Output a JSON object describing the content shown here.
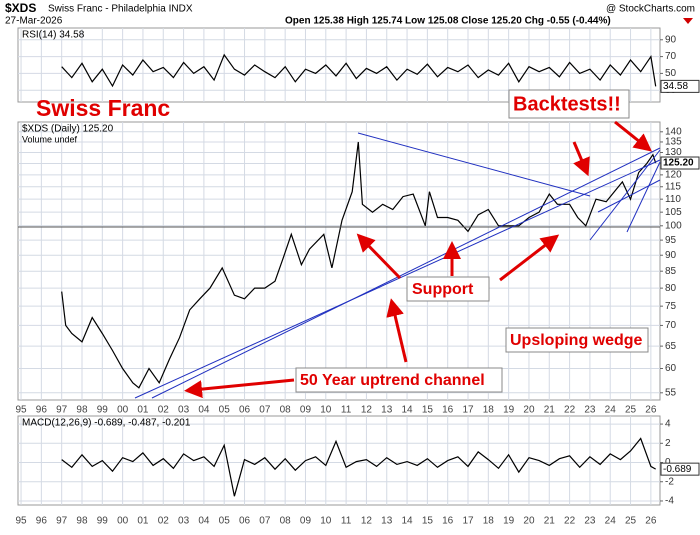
{
  "header": {
    "symbol": "$XDS",
    "name": "Swiss Franc - Philadelphia INDX",
    "date": "27-Mar-2026",
    "source": "@ StockCharts.com",
    "stats": "Open 125.38  High 125.74  Low 125.08  Close 125.20  Chg -0.55 (-0.44%)"
  },
  "chart_data": [
    {
      "type": "line",
      "title": "RSI(14) 34.58",
      "last_label": "34.58",
      "color": "#000000",
      "grid": true,
      "ylim": [
        16,
        104
      ],
      "yticks": [
        30,
        50,
        70,
        90
      ],
      "xlim": [
        1994.85,
        2026.45
      ],
      "x": [
        1997,
        1997.5,
        1998,
        1998.5,
        1999,
        1999.5,
        2000,
        2000.5,
        2001,
        2001.5,
        2002,
        2002.5,
        2003,
        2003.5,
        2004,
        2004.5,
        2005,
        2005.5,
        2006,
        2006.5,
        2007,
        2007.5,
        2008,
        2008.5,
        2009,
        2009.5,
        2010,
        2010.5,
        2011,
        2011.5,
        2012,
        2012.5,
        2013,
        2013.5,
        2014,
        2014.5,
        2015,
        2015.5,
        2016,
        2016.5,
        2017,
        2017.5,
        2018,
        2018.5,
        2019,
        2019.5,
        2020,
        2020.5,
        2021,
        2021.5,
        2022,
        2022.5,
        2023,
        2023.5,
        2024,
        2024.5,
        2025,
        2025.5,
        2026,
        2026.24
      ],
      "values": [
        58,
        45,
        62,
        40,
        55,
        35,
        60,
        48,
        66,
        52,
        57,
        45,
        63,
        50,
        58,
        42,
        72,
        55,
        48,
        60,
        52,
        45,
        58,
        40,
        55,
        50,
        60,
        47,
        62,
        44,
        56,
        50,
        58,
        42,
        55,
        49,
        61,
        46,
        57,
        52,
        60,
        45,
        54,
        48,
        62,
        40,
        58,
        52,
        57,
        46,
        63,
        50,
        55,
        42,
        60,
        48,
        66,
        52,
        70,
        34.58
      ]
    },
    {
      "type": "line",
      "title": "$XDS (Daily) 125.20",
      "subtitle": "Volume undef",
      "last_label": "125.20",
      "color": "#000000",
      "grid": true,
      "log_scale": true,
      "ylim": [
        53.6,
        145
      ],
      "xlim": [
        1994.85,
        2026.45
      ],
      "yticks": [
        55,
        60,
        65,
        70,
        75,
        80,
        85,
        90,
        95,
        100,
        105,
        110,
        115,
        120,
        125,
        130,
        135,
        140
      ],
      "xticks": [
        {
          "value": 1995,
          "label": "95"
        },
        {
          "value": 1996,
          "label": "96"
        },
        {
          "value": 1997,
          "label": "97"
        },
        {
          "value": 1998,
          "label": "98"
        },
        {
          "value": 1999,
          "label": "99"
        },
        {
          "value": 2000,
          "label": "00"
        },
        {
          "value": 2001,
          "label": "01"
        },
        {
          "value": 2002,
          "label": "02"
        },
        {
          "value": 2003,
          "label": "03"
        },
        {
          "value": 2004,
          "label": "04"
        },
        {
          "value": 2005,
          "label": "05"
        },
        {
          "value": 2006,
          "label": "06"
        },
        {
          "value": 2007,
          "label": "07"
        },
        {
          "value": 2008,
          "label": "08"
        },
        {
          "value": 2009,
          "label": "09"
        },
        {
          "value": 2010,
          "label": "10"
        },
        {
          "value": 2011,
          "label": "11"
        },
        {
          "value": 2012,
          "label": "12"
        },
        {
          "value": 2013,
          "label": "13"
        },
        {
          "value": 2014,
          "label": "14"
        },
        {
          "value": 2015,
          "label": "15"
        },
        {
          "value": 2016,
          "label": "16"
        },
        {
          "value": 2017,
          "label": "17"
        },
        {
          "value": 2018,
          "label": "18"
        },
        {
          "value": 2019,
          "label": "19"
        },
        {
          "value": 2020,
          "label": "20"
        },
        {
          "value": 2021,
          "label": "21"
        },
        {
          "value": 2022,
          "label": "22"
        },
        {
          "value": 2023,
          "label": "23"
        },
        {
          "value": 2024,
          "label": "24"
        },
        {
          "value": 2025,
          "label": "25"
        },
        {
          "value": 2026,
          "label": "26"
        }
      ],
      "x": [
        1997,
        1997.2,
        1997.5,
        1998,
        1998.5,
        1999,
        1999.5,
        2000,
        2000.5,
        2000.8,
        2001.3,
        2001.8,
        2002.3,
        2002.8,
        2003.3,
        2003.8,
        2004.3,
        2004.9,
        2005.5,
        2006,
        2006.5,
        2007,
        2007.5,
        2007.9,
        2008.3,
        2008.8,
        2009.2,
        2009.9,
        2010.3,
        2010.8,
        2011.3,
        2011.6,
        2011.8,
        2012.3,
        2012.8,
        2013.3,
        2013.8,
        2014.3,
        2014.9,
        2015.1,
        2015.5,
        2016,
        2016.5,
        2017,
        2017.5,
        2018,
        2018.5,
        2019,
        2019.5,
        2020,
        2020.5,
        2021,
        2021.4,
        2022,
        2022.4,
        2022.8,
        2023.3,
        2023.8,
        2024.2,
        2024.6,
        2025,
        2025.4,
        2025.8,
        2026.1,
        2026.24
      ],
      "values": [
        79,
        70,
        68,
        66,
        72,
        68,
        64,
        60,
        57,
        56,
        60,
        57,
        62,
        67,
        74,
        77,
        80,
        86,
        78,
        77,
        80,
        80,
        82,
        89,
        97,
        87,
        92,
        97,
        86,
        102,
        113,
        135,
        108,
        105,
        108,
        106,
        111,
        112,
        100,
        113,
        103,
        103,
        102,
        98,
        104,
        106,
        100,
        100,
        100,
        103,
        105,
        112,
        108,
        108,
        103,
        100,
        110,
        109,
        113,
        117,
        110,
        121,
        125,
        129,
        125.2
      ],
      "annotations": [
        "Swiss Franc",
        "Backtests!!",
        "Support",
        "Upsloping wedge",
        "50 Year uptrend channel"
      ]
    },
    {
      "type": "line",
      "title": "MACD(12,26,9) -0.689, -0.487, -0.201",
      "last_label": "-0.689",
      "color": "#000000",
      "grid": true,
      "ylim": [
        -4.42,
        4.84
      ],
      "yticks": [
        -4,
        -2,
        0,
        2,
        4
      ],
      "xlim": [
        1994.85,
        2026.45
      ],
      "xticks": [
        {
          "value": 1995,
          "label": "95"
        },
        {
          "value": 1996,
          "label": "96"
        },
        {
          "value": 1997,
          "label": "97"
        },
        {
          "value": 1998,
          "label": "98"
        },
        {
          "value": 1999,
          "label": "99"
        },
        {
          "value": 2000,
          "label": "00"
        },
        {
          "value": 2001,
          "label": "01"
        },
        {
          "value": 2002,
          "label": "02"
        },
        {
          "value": 2003,
          "label": "03"
        },
        {
          "value": 2004,
          "label": "04"
        },
        {
          "value": 2005,
          "label": "05"
        },
        {
          "value": 2006,
          "label": "06"
        },
        {
          "value": 2007,
          "label": "07"
        },
        {
          "value": 2008,
          "label": "08"
        },
        {
          "value": 2009,
          "label": "09"
        },
        {
          "value": 2010,
          "label": "10"
        },
        {
          "value": 2011,
          "label": "11"
        },
        {
          "value": 2012,
          "label": "12"
        },
        {
          "value": 2013,
          "label": "13"
        },
        {
          "value": 2014,
          "label": "14"
        },
        {
          "value": 2015,
          "label": "15"
        },
        {
          "value": 2016,
          "label": "16"
        },
        {
          "value": 2017,
          "label": "17"
        },
        {
          "value": 2018,
          "label": "18"
        },
        {
          "value": 2019,
          "label": "19"
        },
        {
          "value": 2020,
          "label": "20"
        },
        {
          "value": 2021,
          "label": "21"
        },
        {
          "value": 2022,
          "label": "22"
        },
        {
          "value": 2023,
          "label": "23"
        },
        {
          "value": 2024,
          "label": "24"
        },
        {
          "value": 2025,
          "label": "25"
        },
        {
          "value": 2026,
          "label": "26"
        }
      ],
      "x": [
        1997,
        1997.5,
        1998,
        1998.5,
        1999,
        1999.5,
        2000,
        2000.5,
        2001,
        2001.5,
        2002,
        2002.5,
        2003,
        2003.5,
        2004,
        2004.5,
        2005,
        2005.5,
        2006,
        2006.5,
        2007,
        2007.5,
        2008,
        2008.5,
        2009,
        2009.5,
        2010,
        2010.5,
        2011,
        2011.5,
        2012,
        2012.5,
        2013,
        2013.5,
        2014,
        2014.5,
        2015,
        2015.5,
        2016,
        2016.5,
        2017,
        2017.5,
        2018,
        2018.5,
        2019,
        2019.5,
        2020,
        2020.5,
        2021,
        2021.5,
        2022,
        2022.5,
        2023,
        2023.5,
        2024,
        2024.5,
        2025,
        2025.5,
        2026,
        2026.24
      ],
      "values": [
        0.3,
        -0.5,
        0.8,
        -0.4,
        0.2,
        -0.9,
        0.5,
        0.1,
        1.0,
        -0.3,
        0.4,
        -0.6,
        0.9,
        0.2,
        0.6,
        -0.4,
        1.8,
        -3.5,
        0.3,
        -0.2,
        0.5,
        -0.7,
        0.4,
        -0.8,
        0.2,
        0.6,
        -0.3,
        2.2,
        -0.5,
        0.1,
        0.3,
        -0.4,
        0.5,
        -0.2,
        0.1,
        -0.3,
        0.4,
        -0.5,
        0.2,
        0.6,
        -0.4,
        1.1,
        0.3,
        -0.6,
        0.8,
        -1.0,
        0.5,
        0.2,
        -0.3,
        0.4,
        0.7,
        -0.5,
        0.6,
        -0.2,
        0.9,
        0.3,
        1.2,
        2.5,
        -0.4,
        -0.689
      ]
    }
  ]
}
